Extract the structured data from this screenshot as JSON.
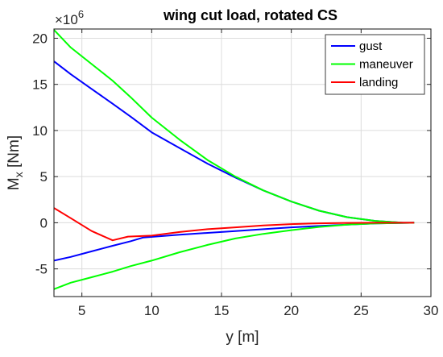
{
  "chart_data": {
    "type": "line",
    "title": "wing cut load, rotated CS",
    "xlabel": "y [m]",
    "ylabel_main": "M",
    "ylabel_sub": "x",
    "ylabel_unit": " [Nm]",
    "exponent_base": "×10",
    "exponent_power": "6",
    "xlim": [
      3,
      30
    ],
    "ylim": [
      -8,
      21
    ],
    "xticks": [
      5,
      10,
      15,
      20,
      25,
      30
    ],
    "yticks": [
      -5,
      0,
      5,
      10,
      15,
      20
    ],
    "grid": true,
    "legend_position": "top-right",
    "series": [
      {
        "name": "gust",
        "color": "#0000ff",
        "lines": [
          [
            [
              3,
              17.5
            ],
            [
              4.2,
              16.1
            ],
            [
              5.7,
              14.5
            ],
            [
              7.2,
              12.9
            ],
            [
              8.5,
              11.5
            ],
            [
              10,
              9.8
            ],
            [
              12,
              8.1
            ],
            [
              14,
              6.4
            ],
            [
              16,
              4.9
            ],
            [
              18,
              3.5
            ],
            [
              20,
              2.3
            ],
            [
              22,
              1.3
            ],
            [
              24,
              0.6
            ],
            [
              26,
              0.2
            ],
            [
              28,
              0.0
            ],
            [
              28.8,
              0.0
            ]
          ],
          [
            [
              3,
              -4.1
            ],
            [
              4.2,
              -3.7
            ],
            [
              5.7,
              -3.1
            ],
            [
              7.2,
              -2.5
            ],
            [
              8.5,
              -2.0
            ],
            [
              9.4,
              -1.6
            ],
            [
              12,
              -1.3
            ],
            [
              14,
              -1.1
            ],
            [
              16,
              -0.9
            ],
            [
              18,
              -0.7
            ],
            [
              20,
              -0.5
            ],
            [
              22,
              -0.35
            ],
            [
              24,
              -0.2
            ],
            [
              26,
              -0.08
            ],
            [
              28.8,
              0.0
            ]
          ]
        ]
      },
      {
        "name": "maneuver",
        "color": "#00ff00",
        "lines": [
          [
            [
              3,
              20.9
            ],
            [
              4.2,
              19.0
            ],
            [
              5.7,
              17.2
            ],
            [
              7.2,
              15.4
            ],
            [
              8.5,
              13.6
            ],
            [
              10,
              11.4
            ],
            [
              12,
              9.0
            ],
            [
              14,
              6.8
            ],
            [
              16,
              5.0
            ],
            [
              18,
              3.5
            ],
            [
              20,
              2.3
            ],
            [
              22,
              1.3
            ],
            [
              24,
              0.6
            ],
            [
              26,
              0.2
            ],
            [
              28,
              0.0
            ],
            [
              28.8,
              0.0
            ]
          ],
          [
            [
              3,
              -7.2
            ],
            [
              4.2,
              -6.5
            ],
            [
              5.7,
              -5.9
            ],
            [
              7.2,
              -5.3
            ],
            [
              8.5,
              -4.7
            ],
            [
              10,
              -4.1
            ],
            [
              12,
              -3.2
            ],
            [
              14,
              -2.4
            ],
            [
              16,
              -1.7
            ],
            [
              18,
              -1.2
            ],
            [
              20,
              -0.8
            ],
            [
              22,
              -0.45
            ],
            [
              24,
              -0.2
            ],
            [
              26,
              -0.08
            ],
            [
              28.8,
              0.0
            ]
          ]
        ]
      },
      {
        "name": "landing",
        "color": "#ff0000",
        "lines": [
          [
            [
              3,
              1.6
            ],
            [
              4.2,
              0.5
            ],
            [
              5.7,
              -0.9
            ],
            [
              7.2,
              -1.9
            ],
            [
              8.3,
              -1.5
            ],
            [
              10,
              -1.4
            ],
            [
              12,
              -1.0
            ],
            [
              14,
              -0.7
            ],
            [
              16,
              -0.5
            ],
            [
              18,
              -0.3
            ],
            [
              20,
              -0.15
            ],
            [
              22,
              -0.06
            ],
            [
              24,
              -0.02
            ],
            [
              26,
              0.0
            ],
            [
              28.8,
              0.0
            ]
          ]
        ]
      }
    ]
  }
}
